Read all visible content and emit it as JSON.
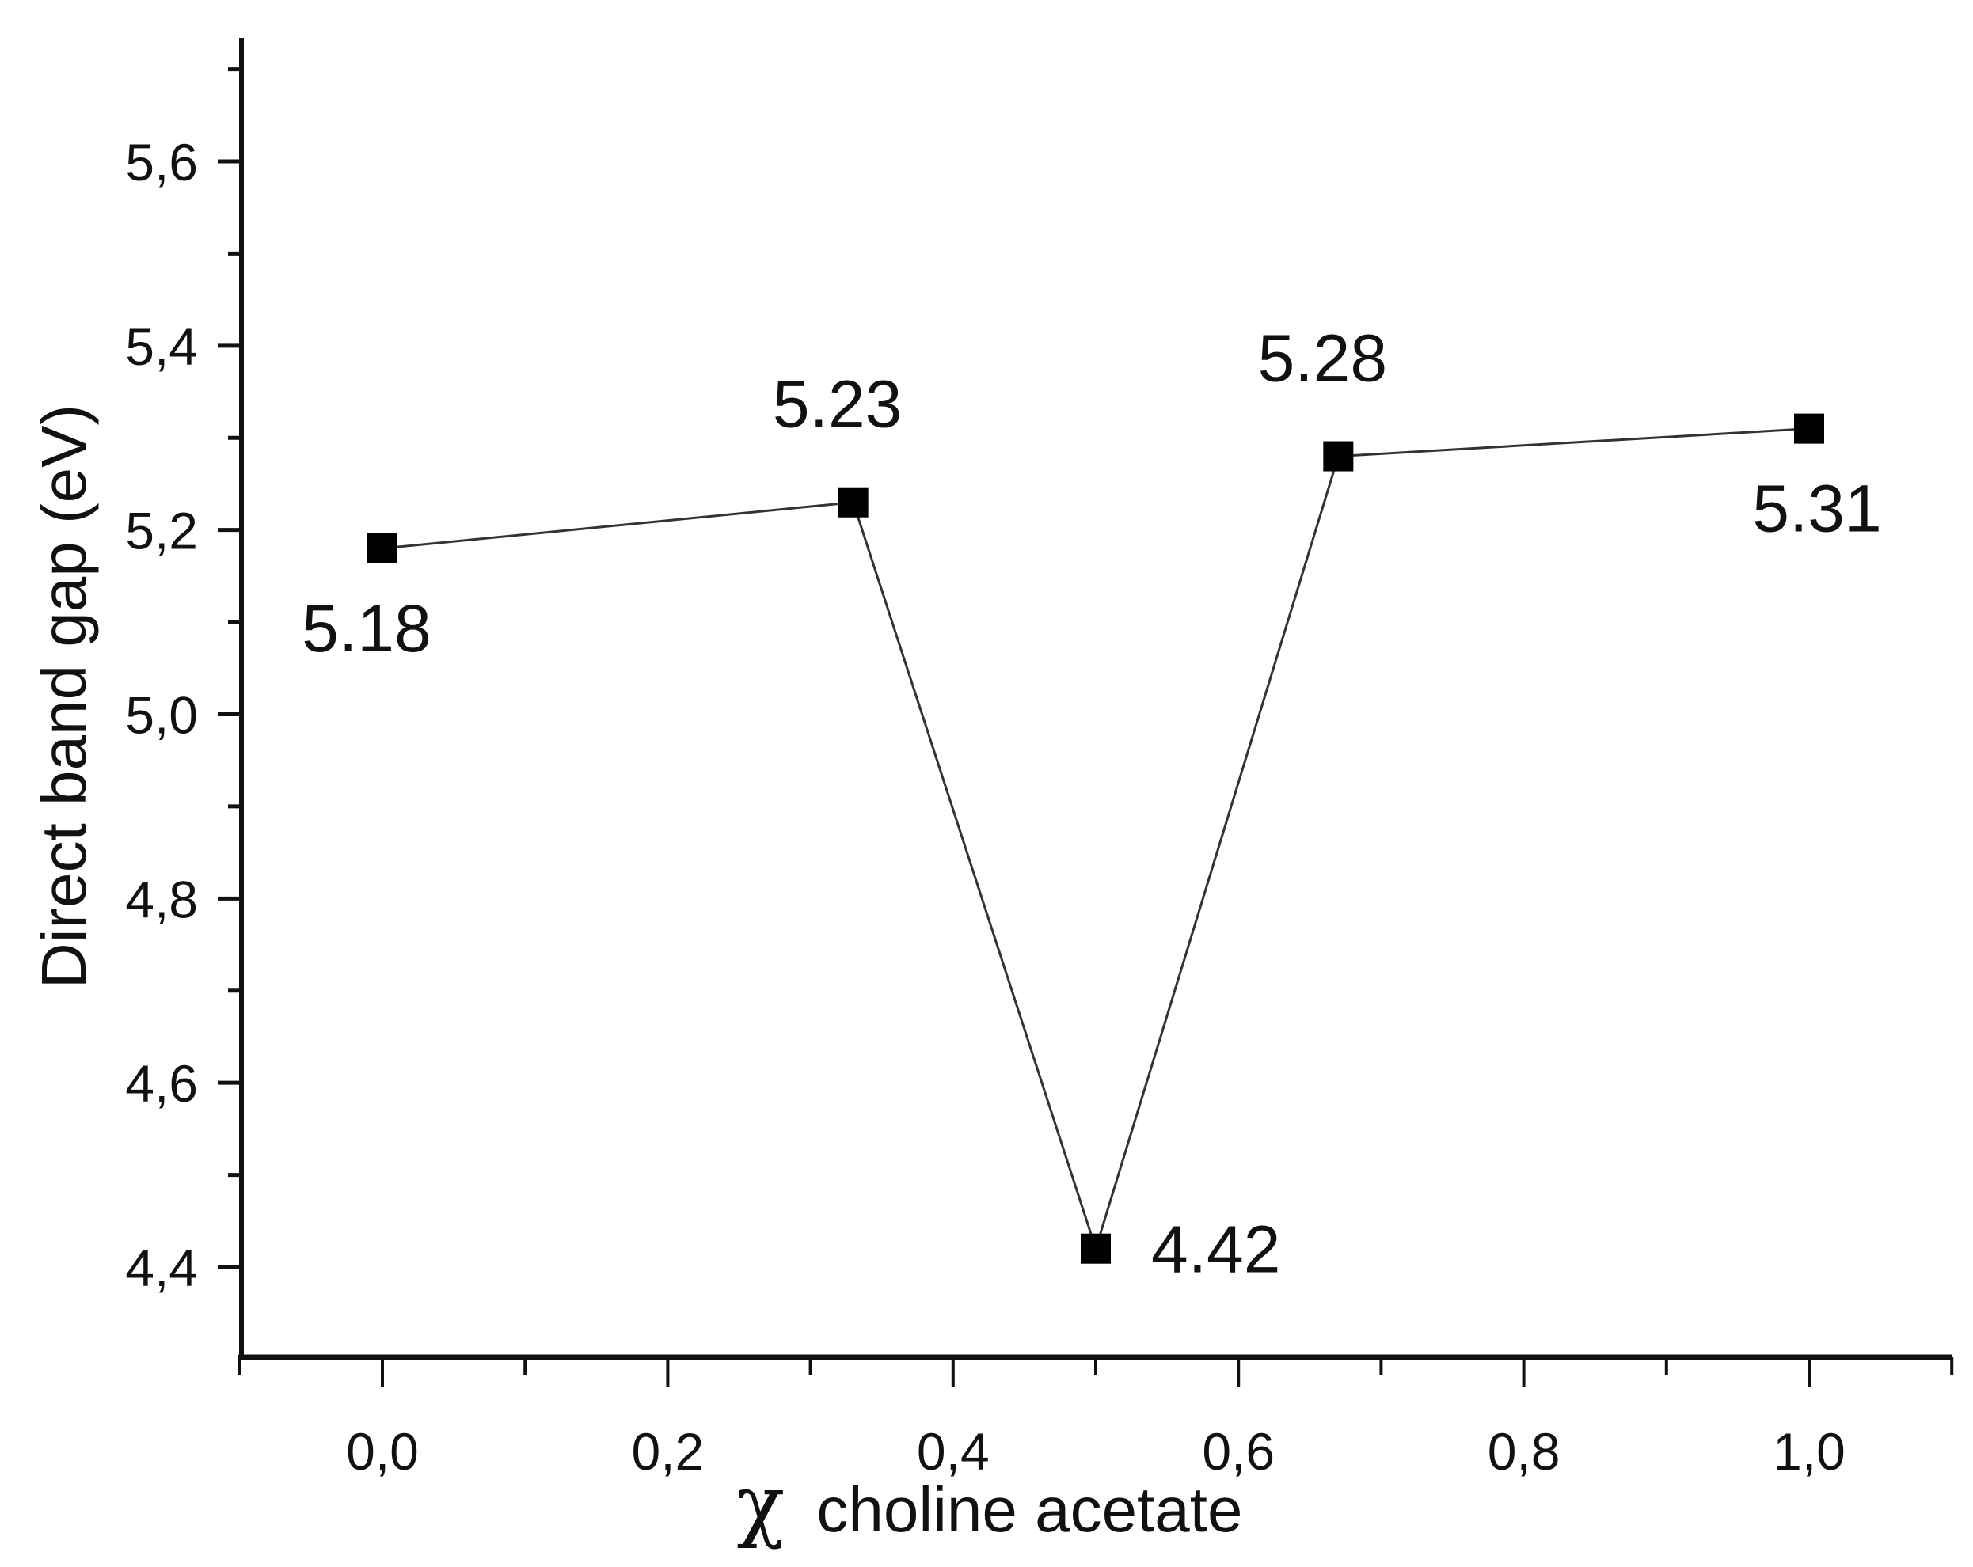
{
  "chart_data": {
    "type": "line",
    "title": "",
    "xlabel": "χ choline acetate",
    "xlabel_symbol": "χ",
    "xlabel_text": "choline acetate",
    "ylabel": "Direct band gap (eV)",
    "xlim": [
      -0.1,
      1.1
    ],
    "ylim": [
      4.3,
      5.73
    ],
    "grid": false,
    "legend": null,
    "x_ticks": [
      0.0,
      0.2,
      0.4,
      0.6,
      0.8,
      1.0
    ],
    "x_tick_labels": [
      "0,0",
      "0,2",
      "0,4",
      "0,6",
      "0,8",
      "1,0"
    ],
    "y_ticks": [
      4.4,
      4.6,
      4.8,
      5.0,
      5.2,
      5.4,
      5.6
    ],
    "y_tick_labels": [
      "4,4",
      "4,6",
      "4,8",
      "5,0",
      "5,2",
      "5,4",
      "5,6"
    ],
    "series": [
      {
        "name": "Direct band gap",
        "marker": "square",
        "color": "#000000",
        "x": [
          0.0,
          0.33,
          0.5,
          0.67,
          1.0
        ],
        "values": [
          5.18,
          5.23,
          4.42,
          5.28,
          5.31
        ]
      }
    ],
    "annotations": [
      {
        "text": "5.18",
        "x": 0.0,
        "y": 5.18,
        "position": "below"
      },
      {
        "text": "5.23",
        "x": 0.33,
        "y": 5.23,
        "position": "above"
      },
      {
        "text": "4.42",
        "x": 0.5,
        "y": 4.42,
        "position": "right"
      },
      {
        "text": "5.28",
        "x": 0.67,
        "y": 5.28,
        "position": "above"
      },
      {
        "text": "5.31",
        "x": 1.0,
        "y": 5.31,
        "position": "below"
      }
    ]
  }
}
